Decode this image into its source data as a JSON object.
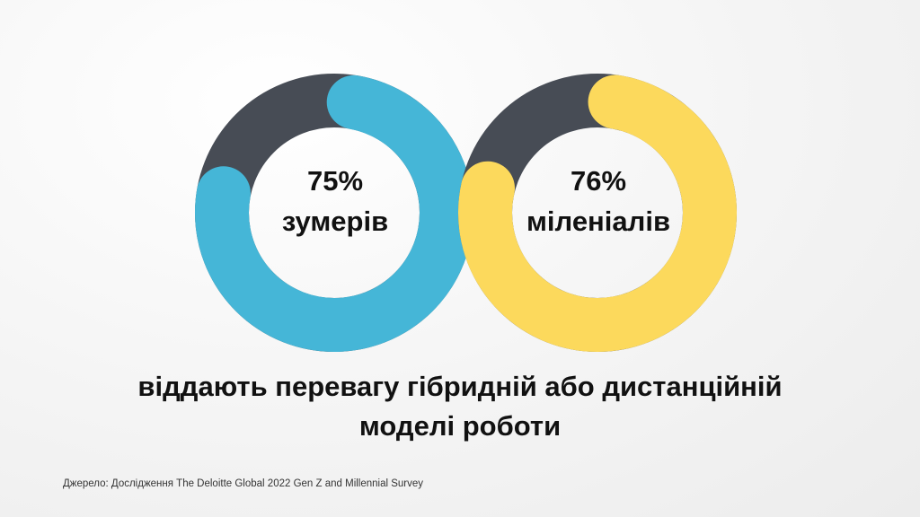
{
  "chart_data": {
    "type": "pie",
    "charts": [
      {
        "percent_label": "75%",
        "group_label": "зумерів",
        "value": 75,
        "colors": {
          "value": "#45b6d7",
          "rest": "#474c55"
        }
      },
      {
        "percent_label": "76%",
        "group_label": "міленіалів",
        "value": 76,
        "colors": {
          "value": "#fcd95c",
          "rest": "#474c55"
        }
      }
    ]
  },
  "caption": {
    "line1": "віддають перевагу гібридній або дистанційній",
    "line2": "моделі роботи"
  },
  "source": "Джерело: Дослідження The Deloitte Global 2022 Gen Z and Millennial Survey"
}
